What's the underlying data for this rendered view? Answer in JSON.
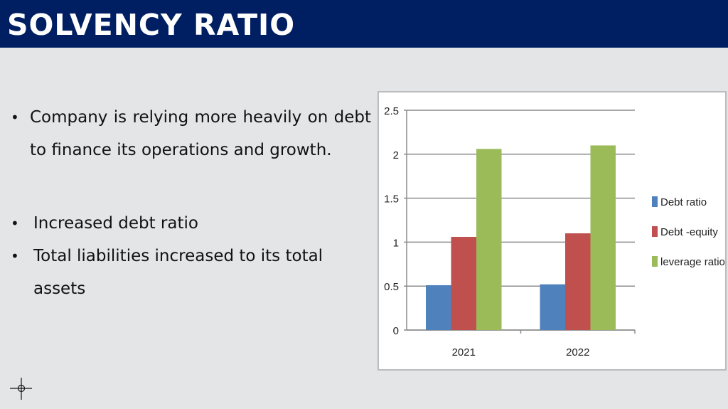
{
  "slide": {
    "title": "SOLVENCY RATIO",
    "paragraph": "Company is relying more heavily on debt to finance its operations and growth.",
    "bullets": [
      "Increased debt ratio",
      "Total liabilities increased to its total assets"
    ],
    "bullet_symbol": "•"
  },
  "colors": {
    "title_bar": "#001f63",
    "debt_ratio": "#4f81bd",
    "debt_equity": "#c0504d",
    "leverage_ratio": "#9bbb59"
  },
  "chart_data": {
    "type": "bar",
    "categories": [
      "2021",
      "2022"
    ],
    "series": [
      {
        "name": "Debt ratio",
        "values": [
          0.51,
          0.52
        ]
      },
      {
        "name": "Debt -equity",
        "values": [
          1.06,
          1.1
        ]
      },
      {
        "name": "leverage ratio",
        "values": [
          2.06,
          2.1
        ]
      }
    ],
    "ylim": [
      0,
      2.5
    ],
    "yticks": [
      "0",
      "0.5",
      "1",
      "1.5",
      "2",
      "2.5"
    ],
    "grid": true,
    "legend": "right"
  }
}
